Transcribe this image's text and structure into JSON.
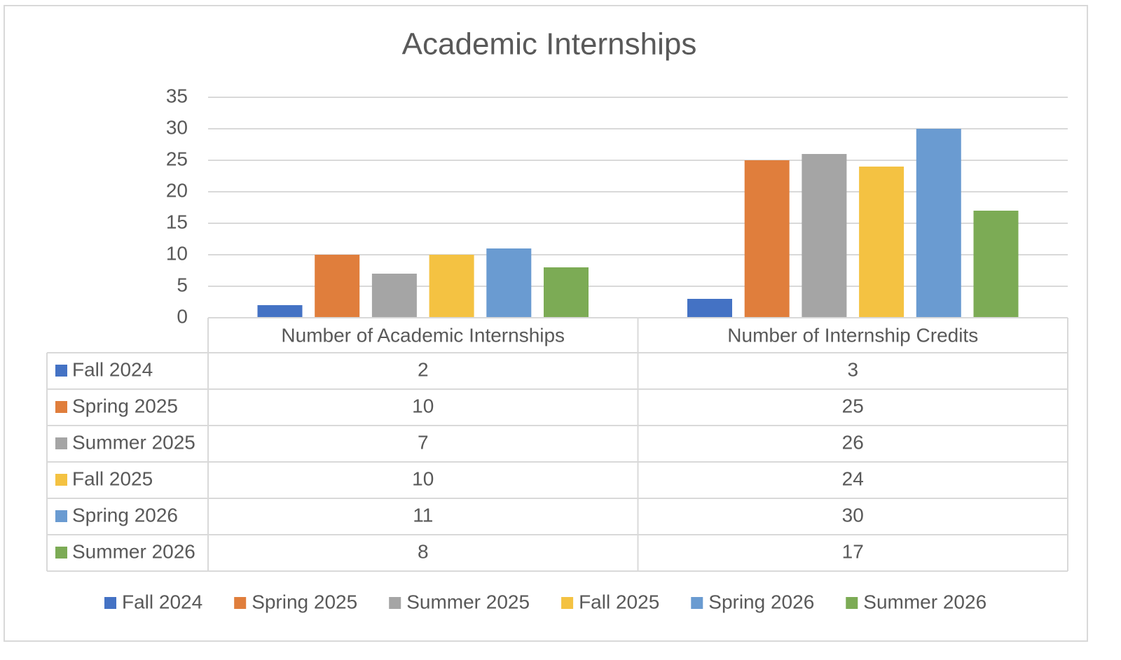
{
  "chart_data": {
    "type": "bar",
    "title": "Academic Internships",
    "categories": [
      "Number of Academic Internships",
      "Number of Internship Credits"
    ],
    "series": [
      {
        "name": "Fall 2024",
        "color": "#4472c4",
        "values": [
          2,
          3
        ]
      },
      {
        "name": "Spring 2025",
        "color": "#e07e3c",
        "values": [
          10,
          25
        ]
      },
      {
        "name": "Summer 2025",
        "color": "#a5a5a5",
        "values": [
          7,
          26
        ]
      },
      {
        "name": "Fall 2025",
        "color": "#f4c242",
        "values": [
          10,
          24
        ]
      },
      {
        "name": "Spring 2026",
        "color": "#6a9bd1",
        "values": [
          11,
          30
        ]
      },
      {
        "name": "Summer 2026",
        "color": "#7cab55",
        "values": [
          8,
          17
        ]
      }
    ],
    "ylim": [
      0,
      35
    ],
    "yticks": [
      0,
      5,
      10,
      15,
      20,
      25,
      30,
      35
    ],
    "grid": true,
    "data_table": true,
    "legend": "bottom"
  }
}
